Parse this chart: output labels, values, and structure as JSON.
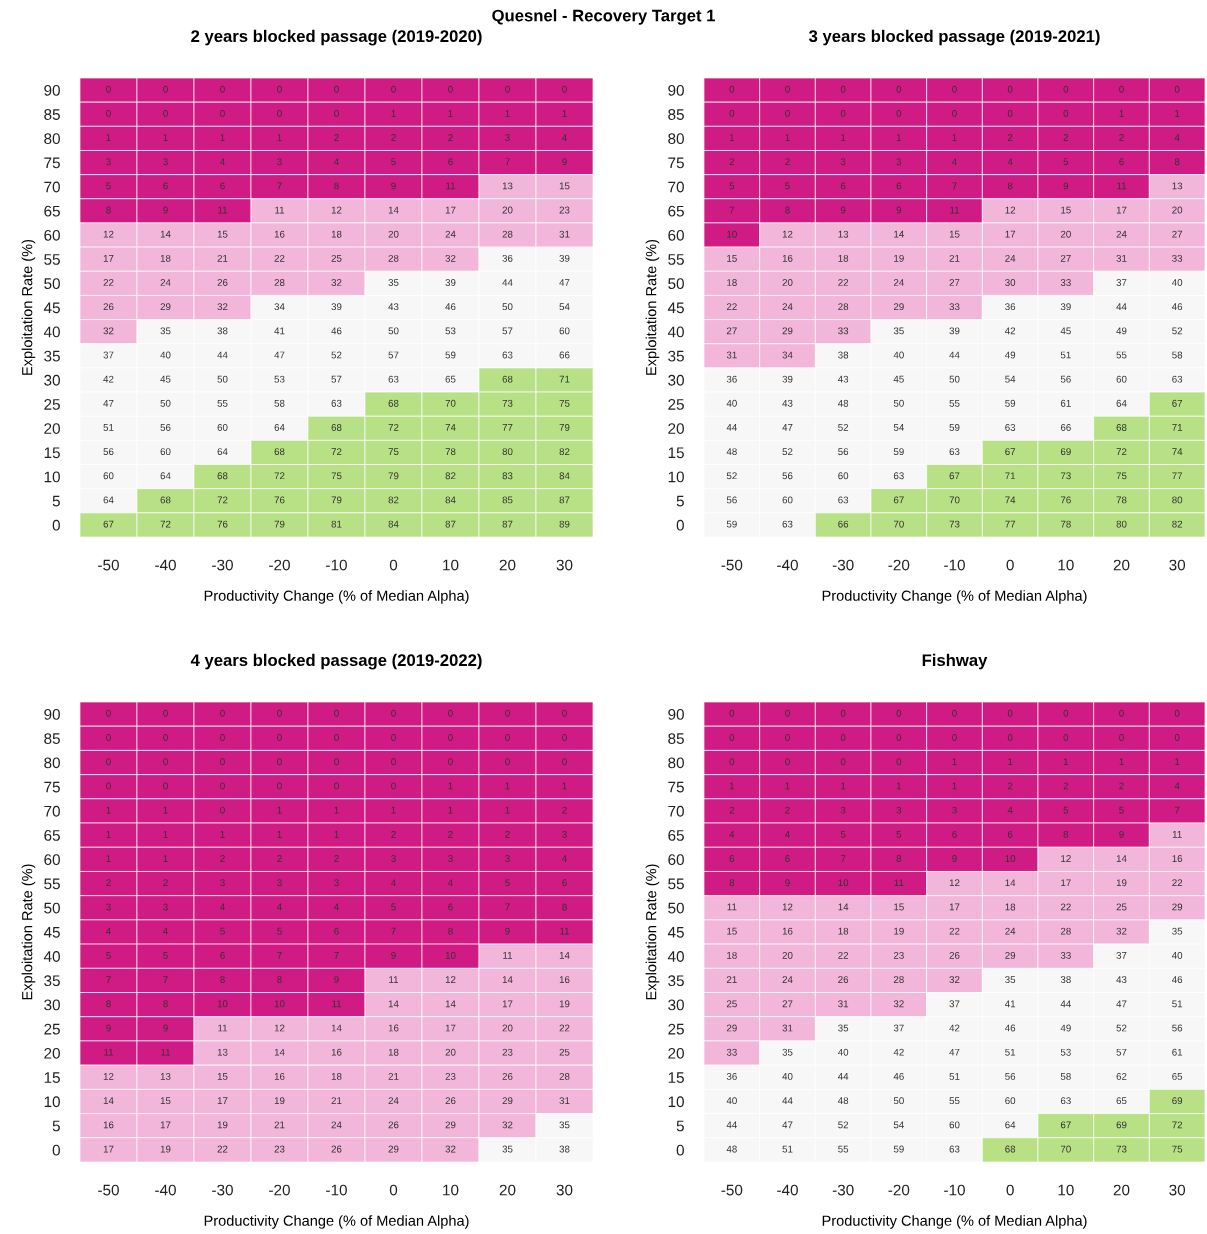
{
  "chart_data": [
    {
      "type": "other",
      "title": "Quesnel - Recovery Target 1"
    },
    {
      "type": "heatmap",
      "title": "2 years blocked passage (2019-2020)",
      "xlabel": "Productivity Change (% of Median Alpha)",
      "ylabel": "Exploitation Rate (%)",
      "data_labels": true,
      "categories": [
        "-50",
        "-40",
        "-30",
        "-20",
        "-10",
        "0",
        "10",
        "20",
        "30"
      ],
      "y_categories": [
        "90",
        "85",
        "80",
        "75",
        "70",
        "65",
        "60",
        "55",
        "50",
        "45",
        "40",
        "35",
        "30",
        "25",
        "20",
        "15",
        "10",
        "5",
        "0"
      ],
      "cells": [
        [
          0,
          0,
          0,
          0,
          0,
          0,
          0,
          0,
          0
        ],
        [
          0,
          0,
          0,
          0,
          0,
          1,
          1,
          1,
          1
        ],
        [
          1,
          1,
          1,
          1,
          2,
          2,
          2,
          3,
          4
        ],
        [
          3,
          3,
          4,
          3,
          4,
          5,
          6,
          7,
          9
        ],
        [
          5,
          6,
          6,
          7,
          8,
          9,
          11,
          13,
          15
        ],
        [
          8,
          9,
          11,
          11,
          12,
          14,
          17,
          20,
          23
        ],
        [
          12,
          14,
          15,
          16,
          18,
          20,
          24,
          28,
          31
        ],
        [
          17,
          18,
          21,
          22,
          25,
          28,
          32,
          36,
          39
        ],
        [
          22,
          24,
          26,
          28,
          32,
          35,
          39,
          44,
          47
        ],
        [
          26,
          29,
          32,
          34,
          39,
          43,
          46,
          50,
          54
        ],
        [
          32,
          35,
          38,
          41,
          46,
          50,
          53,
          57,
          60
        ],
        [
          37,
          40,
          44,
          47,
          52,
          57,
          59,
          63,
          66
        ],
        [
          42,
          45,
          50,
          53,
          57,
          63,
          65,
          68,
          71
        ],
        [
          47,
          50,
          55,
          58,
          63,
          68,
          70,
          73,
          75
        ],
        [
          51,
          56,
          60,
          64,
          68,
          72,
          74,
          77,
          79
        ],
        [
          56,
          60,
          64,
          68,
          72,
          75,
          78,
          80,
          82
        ],
        [
          60,
          64,
          68,
          72,
          75,
          79,
          82,
          83,
          84
        ],
        [
          64,
          68,
          72,
          76,
          79,
          82,
          84,
          85,
          87
        ],
        [
          67,
          72,
          76,
          79,
          81,
          84,
          87,
          87,
          89
        ]
      ],
      "colors": [
        [
          "#d01b84",
          "#d01b84",
          "#d01b84",
          "#d01b84",
          "#d01b84",
          "#d01b84",
          "#d01b84",
          "#d01b84",
          "#d01b84"
        ],
        [
          "#d01b84",
          "#d01b84",
          "#d01b84",
          "#d01b84",
          "#d01b84",
          "#d01b84",
          "#d01b84",
          "#d01b84",
          "#d01b84"
        ],
        [
          "#d01b84",
          "#d01b84",
          "#d01b84",
          "#d01b84",
          "#d01b84",
          "#d01b84",
          "#d01b84",
          "#d01b84",
          "#d01b84"
        ],
        [
          "#d01b84",
          "#d01b84",
          "#d01b84",
          "#d01b84",
          "#d01b84",
          "#d01b84",
          "#d01b84",
          "#d01b84",
          "#d01b84"
        ],
        [
          "#d01b84",
          "#d01b84",
          "#d01b84",
          "#d01b84",
          "#d01b84",
          "#d01b84",
          "#d01b84",
          "#f1b6da",
          "#f1b6da"
        ],
        [
          "#d01b84",
          "#d01b84",
          "#d01b84",
          "#f1b6da",
          "#f1b6da",
          "#f1b6da",
          "#f1b6da",
          "#f1b6da",
          "#f1b6da"
        ],
        [
          "#f1b6da",
          "#f1b6da",
          "#f1b6da",
          "#f1b6da",
          "#f1b6da",
          "#f1b6da",
          "#f1b6da",
          "#f1b6da",
          "#f1b6da"
        ],
        [
          "#f1b6da",
          "#f1b6da",
          "#f1b6da",
          "#f1b6da",
          "#f1b6da",
          "#f1b6da",
          "#f1b6da",
          "#f7f7f7",
          "#f7f7f7"
        ],
        [
          "#f1b6da",
          "#f1b6da",
          "#f1b6da",
          "#f1b6da",
          "#f1b6da",
          "#f7f7f7",
          "#f7f7f7",
          "#f7f7f7",
          "#f7f7f7"
        ],
        [
          "#f1b6da",
          "#f1b6da",
          "#f1b6da",
          "#f7f7f7",
          "#f7f7f7",
          "#f7f7f7",
          "#f7f7f7",
          "#f7f7f7",
          "#f7f7f7"
        ],
        [
          "#f1b6da",
          "#f7f7f7",
          "#f7f7f7",
          "#f7f7f7",
          "#f7f7f7",
          "#f7f7f7",
          "#f7f7f7",
          "#f7f7f7",
          "#f7f7f7"
        ],
        [
          "#f7f7f7",
          "#f7f7f7",
          "#f7f7f7",
          "#f7f7f7",
          "#f7f7f7",
          "#f7f7f7",
          "#f7f7f7",
          "#f7f7f7",
          "#f7f7f7"
        ],
        [
          "#f7f7f7",
          "#f7f7f7",
          "#f7f7f7",
          "#f7f7f7",
          "#f7f7f7",
          "#f7f7f7",
          "#f7f7f7",
          "#b8e186",
          "#b8e186"
        ],
        [
          "#f7f7f7",
          "#f7f7f7",
          "#f7f7f7",
          "#f7f7f7",
          "#f7f7f7",
          "#b8e186",
          "#b8e186",
          "#b8e186",
          "#b8e186"
        ],
        [
          "#f7f7f7",
          "#f7f7f7",
          "#f7f7f7",
          "#f7f7f7",
          "#b8e186",
          "#b8e186",
          "#b8e186",
          "#b8e186",
          "#b8e186"
        ],
        [
          "#f7f7f7",
          "#f7f7f7",
          "#f7f7f7",
          "#b8e186",
          "#b8e186",
          "#b8e186",
          "#b8e186",
          "#b8e186",
          "#b8e186"
        ],
        [
          "#f7f7f7",
          "#f7f7f7",
          "#b8e186",
          "#b8e186",
          "#b8e186",
          "#b8e186",
          "#b8e186",
          "#b8e186",
          "#b8e186"
        ],
        [
          "#f7f7f7",
          "#b8e186",
          "#b8e186",
          "#b8e186",
          "#b8e186",
          "#b8e186",
          "#b8e186",
          "#b8e186",
          "#b8e186"
        ],
        [
          "#b8e186",
          "#b8e186",
          "#b8e186",
          "#b8e186",
          "#b8e186",
          "#b8e186",
          "#b8e186",
          "#b8e186",
          "#b8e186"
        ]
      ]
    },
    {
      "type": "heatmap",
      "title": "3 years blocked passage (2019-2021)",
      "xlabel": "Productivity Change (% of Median Alpha)",
      "ylabel": "Exploitation Rate (%)",
      "data_labels": true,
      "categories": [
        "-50",
        "-40",
        "-30",
        "-20",
        "-10",
        "0",
        "10",
        "20",
        "30"
      ],
      "y_categories": [
        "90",
        "85",
        "80",
        "75",
        "70",
        "65",
        "60",
        "55",
        "50",
        "45",
        "40",
        "35",
        "30",
        "25",
        "20",
        "15",
        "10",
        "5",
        "0"
      ],
      "cells": [
        [
          0,
          0,
          0,
          0,
          0,
          0,
          0,
          0,
          0
        ],
        [
          0,
          0,
          0,
          0,
          0,
          0,
          0,
          1,
          1
        ],
        [
          1,
          1,
          1,
          1,
          1,
          2,
          2,
          2,
          4
        ],
        [
          2,
          2,
          3,
          3,
          4,
          4,
          5,
          6,
          8
        ],
        [
          5,
          5,
          6,
          6,
          7,
          8,
          9,
          11,
          13
        ],
        [
          7,
          8,
          9,
          9,
          11,
          12,
          15,
          17,
          20
        ],
        [
          10,
          12,
          13,
          14,
          15,
          17,
          20,
          24,
          27
        ],
        [
          15,
          16,
          18,
          19,
          21,
          24,
          27,
          31,
          33
        ],
        [
          18,
          20,
          22,
          24,
          27,
          30,
          33,
          37,
          40
        ],
        [
          22,
          24,
          28,
          29,
          33,
          36,
          39,
          44,
          46
        ],
        [
          27,
          29,
          33,
          35,
          39,
          42,
          45,
          49,
          52
        ],
        [
          31,
          34,
          38,
          40,
          44,
          49,
          51,
          55,
          58
        ],
        [
          36,
          39,
          43,
          45,
          50,
          54,
          56,
          60,
          63
        ],
        [
          40,
          43,
          48,
          50,
          55,
          59,
          61,
          64,
          67
        ],
        [
          44,
          47,
          52,
          54,
          59,
          63,
          66,
          68,
          71
        ],
        [
          48,
          52,
          56,
          59,
          63,
          67,
          69,
          72,
          74
        ],
        [
          52,
          56,
          60,
          63,
          67,
          71,
          73,
          75,
          77
        ],
        [
          56,
          60,
          63,
          67,
          70,
          74,
          76,
          78,
          80
        ],
        [
          59,
          63,
          66,
          70,
          73,
          77,
          78,
          80,
          82
        ]
      ],
      "colors": [
        [
          "#d01b84",
          "#d01b84",
          "#d01b84",
          "#d01b84",
          "#d01b84",
          "#d01b84",
          "#d01b84",
          "#d01b84",
          "#d01b84"
        ],
        [
          "#d01b84",
          "#d01b84",
          "#d01b84",
          "#d01b84",
          "#d01b84",
          "#d01b84",
          "#d01b84",
          "#d01b84",
          "#d01b84"
        ],
        [
          "#d01b84",
          "#d01b84",
          "#d01b84",
          "#d01b84",
          "#d01b84",
          "#d01b84",
          "#d01b84",
          "#d01b84",
          "#d01b84"
        ],
        [
          "#d01b84",
          "#d01b84",
          "#d01b84",
          "#d01b84",
          "#d01b84",
          "#d01b84",
          "#d01b84",
          "#d01b84",
          "#d01b84"
        ],
        [
          "#d01b84",
          "#d01b84",
          "#d01b84",
          "#d01b84",
          "#d01b84",
          "#d01b84",
          "#d01b84",
          "#d01b84",
          "#f1b6da"
        ],
        [
          "#d01b84",
          "#d01b84",
          "#d01b84",
          "#d01b84",
          "#d01b84",
          "#f1b6da",
          "#f1b6da",
          "#f1b6da",
          "#f1b6da"
        ],
        [
          "#d01b84",
          "#f1b6da",
          "#f1b6da",
          "#f1b6da",
          "#f1b6da",
          "#f1b6da",
          "#f1b6da",
          "#f1b6da",
          "#f1b6da"
        ],
        [
          "#f1b6da",
          "#f1b6da",
          "#f1b6da",
          "#f1b6da",
          "#f1b6da",
          "#f1b6da",
          "#f1b6da",
          "#f1b6da",
          "#f1b6da"
        ],
        [
          "#f1b6da",
          "#f1b6da",
          "#f1b6da",
          "#f1b6da",
          "#f1b6da",
          "#f1b6da",
          "#f1b6da",
          "#f7f7f7",
          "#f7f7f7"
        ],
        [
          "#f1b6da",
          "#f1b6da",
          "#f1b6da",
          "#f1b6da",
          "#f1b6da",
          "#f7f7f7",
          "#f7f7f7",
          "#f7f7f7",
          "#f7f7f7"
        ],
        [
          "#f1b6da",
          "#f1b6da",
          "#f1b6da",
          "#f7f7f7",
          "#f7f7f7",
          "#f7f7f7",
          "#f7f7f7",
          "#f7f7f7",
          "#f7f7f7"
        ],
        [
          "#f1b6da",
          "#f1b6da",
          "#f7f7f7",
          "#f7f7f7",
          "#f7f7f7",
          "#f7f7f7",
          "#f7f7f7",
          "#f7f7f7",
          "#f7f7f7"
        ],
        [
          "#f7f7f7",
          "#f7f7f7",
          "#f7f7f7",
          "#f7f7f7",
          "#f7f7f7",
          "#f7f7f7",
          "#f7f7f7",
          "#f7f7f7",
          "#f7f7f7"
        ],
        [
          "#f7f7f7",
          "#f7f7f7",
          "#f7f7f7",
          "#f7f7f7",
          "#f7f7f7",
          "#f7f7f7",
          "#f7f7f7",
          "#f7f7f7",
          "#b8e186"
        ],
        [
          "#f7f7f7",
          "#f7f7f7",
          "#f7f7f7",
          "#f7f7f7",
          "#f7f7f7",
          "#f7f7f7",
          "#f7f7f7",
          "#b8e186",
          "#b8e186"
        ],
        [
          "#f7f7f7",
          "#f7f7f7",
          "#f7f7f7",
          "#f7f7f7",
          "#f7f7f7",
          "#b8e186",
          "#b8e186",
          "#b8e186",
          "#b8e186"
        ],
        [
          "#f7f7f7",
          "#f7f7f7",
          "#f7f7f7",
          "#f7f7f7",
          "#b8e186",
          "#b8e186",
          "#b8e186",
          "#b8e186",
          "#b8e186"
        ],
        [
          "#f7f7f7",
          "#f7f7f7",
          "#f7f7f7",
          "#b8e186",
          "#b8e186",
          "#b8e186",
          "#b8e186",
          "#b8e186",
          "#b8e186"
        ],
        [
          "#f7f7f7",
          "#f7f7f7",
          "#b8e186",
          "#b8e186",
          "#b8e186",
          "#b8e186",
          "#b8e186",
          "#b8e186",
          "#b8e186"
        ]
      ]
    },
    {
      "type": "heatmap",
      "title": "4 years blocked passage (2019-2022)",
      "xlabel": "Productivity Change (% of Median Alpha)",
      "ylabel": "Exploitation Rate (%)",
      "data_labels": true,
      "categories": [
        "-50",
        "-40",
        "-30",
        "-20",
        "-10",
        "0",
        "10",
        "20",
        "30"
      ],
      "y_categories": [
        "90",
        "85",
        "80",
        "75",
        "70",
        "65",
        "60",
        "55",
        "50",
        "45",
        "40",
        "35",
        "30",
        "25",
        "20",
        "15",
        "10",
        "5",
        "0"
      ],
      "cells": [
        [
          0,
          0,
          0,
          0,
          0,
          0,
          0,
          0,
          0
        ],
        [
          0,
          0,
          0,
          0,
          0,
          0,
          0,
          0,
          0
        ],
        [
          0,
          0,
          0,
          0,
          0,
          0,
          0,
          0,
          0
        ],
        [
          0,
          0,
          0,
          0,
          0,
          0,
          1,
          1,
          1
        ],
        [
          1,
          1,
          0,
          1,
          1,
          1,
          1,
          1,
          2
        ],
        [
          1,
          1,
          1,
          1,
          1,
          2,
          2,
          2,
          3
        ],
        [
          1,
          1,
          2,
          2,
          2,
          3,
          3,
          3,
          4
        ],
        [
          2,
          2,
          3,
          3,
          3,
          4,
          4,
          5,
          6
        ],
        [
          3,
          3,
          4,
          4,
          4,
          5,
          6,
          7,
          8
        ],
        [
          4,
          4,
          5,
          5,
          6,
          7,
          8,
          9,
          11
        ],
        [
          5,
          5,
          6,
          7,
          7,
          9,
          10,
          11,
          14
        ],
        [
          7,
          7,
          8,
          8,
          9,
          11,
          12,
          14,
          16
        ],
        [
          8,
          8,
          10,
          10,
          11,
          14,
          14,
          17,
          19
        ],
        [
          9,
          9,
          11,
          12,
          14,
          16,
          17,
          20,
          22
        ],
        [
          11,
          11,
          13,
          14,
          16,
          18,
          20,
          23,
          25
        ],
        [
          12,
          13,
          15,
          16,
          18,
          21,
          23,
          26,
          28
        ],
        [
          14,
          15,
          17,
          19,
          21,
          24,
          26,
          29,
          31
        ],
        [
          16,
          17,
          19,
          21,
          24,
          26,
          29,
          32,
          35
        ],
        [
          17,
          19,
          22,
          23,
          26,
          29,
          32,
          35,
          38
        ]
      ],
      "colors": [
        [
          "#d01b84",
          "#d01b84",
          "#d01b84",
          "#d01b84",
          "#d01b84",
          "#d01b84",
          "#d01b84",
          "#d01b84",
          "#d01b84"
        ],
        [
          "#d01b84",
          "#d01b84",
          "#d01b84",
          "#d01b84",
          "#d01b84",
          "#d01b84",
          "#d01b84",
          "#d01b84",
          "#d01b84"
        ],
        [
          "#d01b84",
          "#d01b84",
          "#d01b84",
          "#d01b84",
          "#d01b84",
          "#d01b84",
          "#d01b84",
          "#d01b84",
          "#d01b84"
        ],
        [
          "#d01b84",
          "#d01b84",
          "#d01b84",
          "#d01b84",
          "#d01b84",
          "#d01b84",
          "#d01b84",
          "#d01b84",
          "#d01b84"
        ],
        [
          "#d01b84",
          "#d01b84",
          "#d01b84",
          "#d01b84",
          "#d01b84",
          "#d01b84",
          "#d01b84",
          "#d01b84",
          "#d01b84"
        ],
        [
          "#d01b84",
          "#d01b84",
          "#d01b84",
          "#d01b84",
          "#d01b84",
          "#d01b84",
          "#d01b84",
          "#d01b84",
          "#d01b84"
        ],
        [
          "#d01b84",
          "#d01b84",
          "#d01b84",
          "#d01b84",
          "#d01b84",
          "#d01b84",
          "#d01b84",
          "#d01b84",
          "#d01b84"
        ],
        [
          "#d01b84",
          "#d01b84",
          "#d01b84",
          "#d01b84",
          "#d01b84",
          "#d01b84",
          "#d01b84",
          "#d01b84",
          "#d01b84"
        ],
        [
          "#d01b84",
          "#d01b84",
          "#d01b84",
          "#d01b84",
          "#d01b84",
          "#d01b84",
          "#d01b84",
          "#d01b84",
          "#d01b84"
        ],
        [
          "#d01b84",
          "#d01b84",
          "#d01b84",
          "#d01b84",
          "#d01b84",
          "#d01b84",
          "#d01b84",
          "#d01b84",
          "#d01b84"
        ],
        [
          "#d01b84",
          "#d01b84",
          "#d01b84",
          "#d01b84",
          "#d01b84",
          "#d01b84",
          "#d01b84",
          "#f1b6da",
          "#f1b6da"
        ],
        [
          "#d01b84",
          "#d01b84",
          "#d01b84",
          "#d01b84",
          "#d01b84",
          "#f1b6da",
          "#f1b6da",
          "#f1b6da",
          "#f1b6da"
        ],
        [
          "#d01b84",
          "#d01b84",
          "#d01b84",
          "#d01b84",
          "#d01b84",
          "#f1b6da",
          "#f1b6da",
          "#f1b6da",
          "#f1b6da"
        ],
        [
          "#d01b84",
          "#d01b84",
          "#f1b6da",
          "#f1b6da",
          "#f1b6da",
          "#f1b6da",
          "#f1b6da",
          "#f1b6da",
          "#f1b6da"
        ],
        [
          "#d01b84",
          "#d01b84",
          "#f1b6da",
          "#f1b6da",
          "#f1b6da",
          "#f1b6da",
          "#f1b6da",
          "#f1b6da",
          "#f1b6da"
        ],
        [
          "#f1b6da",
          "#f1b6da",
          "#f1b6da",
          "#f1b6da",
          "#f1b6da",
          "#f1b6da",
          "#f1b6da",
          "#f1b6da",
          "#f1b6da"
        ],
        [
          "#f1b6da",
          "#f1b6da",
          "#f1b6da",
          "#f1b6da",
          "#f1b6da",
          "#f1b6da",
          "#f1b6da",
          "#f1b6da",
          "#f1b6da"
        ],
        [
          "#f1b6da",
          "#f1b6da",
          "#f1b6da",
          "#f1b6da",
          "#f1b6da",
          "#f1b6da",
          "#f1b6da",
          "#f1b6da",
          "#f7f7f7"
        ],
        [
          "#f1b6da",
          "#f1b6da",
          "#f1b6da",
          "#f1b6da",
          "#f1b6da",
          "#f1b6da",
          "#f1b6da",
          "#f7f7f7",
          "#f7f7f7"
        ]
      ]
    },
    {
      "type": "heatmap",
      "title": "Fishway",
      "xlabel": "Productivity Change (% of Median Alpha)",
      "ylabel": "Exploitation Rate (%)",
      "data_labels": true,
      "categories": [
        "-50",
        "-40",
        "-30",
        "-20",
        "-10",
        "0",
        "10",
        "20",
        "30"
      ],
      "y_categories": [
        "90",
        "85",
        "80",
        "75",
        "70",
        "65",
        "60",
        "55",
        "50",
        "45",
        "40",
        "35",
        "30",
        "25",
        "20",
        "15",
        "10",
        "5",
        "0"
      ],
      "cells": [
        [
          0,
          0,
          0,
          0,
          0,
          0,
          0,
          0,
          0
        ],
        [
          0,
          0,
          0,
          0,
          0,
          0,
          0,
          0,
          0
        ],
        [
          0,
          0,
          0,
          0,
          1,
          1,
          1,
          1,
          1
        ],
        [
          1,
          1,
          1,
          1,
          1,
          2,
          2,
          2,
          4
        ],
        [
          2,
          2,
          3,
          3,
          3,
          4,
          5,
          5,
          7
        ],
        [
          4,
          4,
          5,
          5,
          6,
          6,
          8,
          9,
          11
        ],
        [
          6,
          6,
          7,
          8,
          9,
          10,
          12,
          14,
          16
        ],
        [
          8,
          9,
          10,
          11,
          12,
          14,
          17,
          19,
          22
        ],
        [
          11,
          12,
          14,
          15,
          17,
          18,
          22,
          25,
          29
        ],
        [
          15,
          16,
          18,
          19,
          22,
          24,
          28,
          32,
          35
        ],
        [
          18,
          20,
          22,
          23,
          26,
          29,
          33,
          37,
          40
        ],
        [
          21,
          24,
          26,
          28,
          32,
          35,
          38,
          43,
          46
        ],
        [
          25,
          27,
          31,
          32,
          37,
          41,
          44,
          47,
          51
        ],
        [
          29,
          31,
          35,
          37,
          42,
          46,
          49,
          52,
          56
        ],
        [
          33,
          35,
          40,
          42,
          47,
          51,
          53,
          57,
          61
        ],
        [
          36,
          40,
          44,
          46,
          51,
          56,
          58,
          62,
          65
        ],
        [
          40,
          44,
          48,
          50,
          55,
          60,
          63,
          65,
          69
        ],
        [
          44,
          47,
          52,
          54,
          60,
          64,
          67,
          69,
          72
        ],
        [
          48,
          51,
          55,
          59,
          63,
          68,
          70,
          73,
          75
        ]
      ],
      "colors": [
        [
          "#d01b84",
          "#d01b84",
          "#d01b84",
          "#d01b84",
          "#d01b84",
          "#d01b84",
          "#d01b84",
          "#d01b84",
          "#d01b84"
        ],
        [
          "#d01b84",
          "#d01b84",
          "#d01b84",
          "#d01b84",
          "#d01b84",
          "#d01b84",
          "#d01b84",
          "#d01b84",
          "#d01b84"
        ],
        [
          "#d01b84",
          "#d01b84",
          "#d01b84",
          "#d01b84",
          "#d01b84",
          "#d01b84",
          "#d01b84",
          "#d01b84",
          "#d01b84"
        ],
        [
          "#d01b84",
          "#d01b84",
          "#d01b84",
          "#d01b84",
          "#d01b84",
          "#d01b84",
          "#d01b84",
          "#d01b84",
          "#d01b84"
        ],
        [
          "#d01b84",
          "#d01b84",
          "#d01b84",
          "#d01b84",
          "#d01b84",
          "#d01b84",
          "#d01b84",
          "#d01b84",
          "#d01b84"
        ],
        [
          "#d01b84",
          "#d01b84",
          "#d01b84",
          "#d01b84",
          "#d01b84",
          "#d01b84",
          "#d01b84",
          "#d01b84",
          "#f1b6da"
        ],
        [
          "#d01b84",
          "#d01b84",
          "#d01b84",
          "#d01b84",
          "#d01b84",
          "#d01b84",
          "#f1b6da",
          "#f1b6da",
          "#f1b6da"
        ],
        [
          "#d01b84",
          "#d01b84",
          "#d01b84",
          "#d01b84",
          "#f1b6da",
          "#f1b6da",
          "#f1b6da",
          "#f1b6da",
          "#f1b6da"
        ],
        [
          "#f1b6da",
          "#f1b6da",
          "#f1b6da",
          "#f1b6da",
          "#f1b6da",
          "#f1b6da",
          "#f1b6da",
          "#f1b6da",
          "#f1b6da"
        ],
        [
          "#f1b6da",
          "#f1b6da",
          "#f1b6da",
          "#f1b6da",
          "#f1b6da",
          "#f1b6da",
          "#f1b6da",
          "#f1b6da",
          "#f7f7f7"
        ],
        [
          "#f1b6da",
          "#f1b6da",
          "#f1b6da",
          "#f1b6da",
          "#f1b6da",
          "#f1b6da",
          "#f1b6da",
          "#f7f7f7",
          "#f7f7f7"
        ],
        [
          "#f1b6da",
          "#f1b6da",
          "#f1b6da",
          "#f1b6da",
          "#f1b6da",
          "#f7f7f7",
          "#f7f7f7",
          "#f7f7f7",
          "#f7f7f7"
        ],
        [
          "#f1b6da",
          "#f1b6da",
          "#f1b6da",
          "#f1b6da",
          "#f7f7f7",
          "#f7f7f7",
          "#f7f7f7",
          "#f7f7f7",
          "#f7f7f7"
        ],
        [
          "#f1b6da",
          "#f1b6da",
          "#f7f7f7",
          "#f7f7f7",
          "#f7f7f7",
          "#f7f7f7",
          "#f7f7f7",
          "#f7f7f7",
          "#f7f7f7"
        ],
        [
          "#f1b6da",
          "#f7f7f7",
          "#f7f7f7",
          "#f7f7f7",
          "#f7f7f7",
          "#f7f7f7",
          "#f7f7f7",
          "#f7f7f7",
          "#f7f7f7"
        ],
        [
          "#f7f7f7",
          "#f7f7f7",
          "#f7f7f7",
          "#f7f7f7",
          "#f7f7f7",
          "#f7f7f7",
          "#f7f7f7",
          "#f7f7f7",
          "#f7f7f7"
        ],
        [
          "#f7f7f7",
          "#f7f7f7",
          "#f7f7f7",
          "#f7f7f7",
          "#f7f7f7",
          "#f7f7f7",
          "#f7f7f7",
          "#f7f7f7",
          "#b8e186"
        ],
        [
          "#f7f7f7",
          "#f7f7f7",
          "#f7f7f7",
          "#f7f7f7",
          "#f7f7f7",
          "#f7f7f7",
          "#b8e186",
          "#b8e186",
          "#b8e186"
        ],
        [
          "#f7f7f7",
          "#f7f7f7",
          "#f7f7f7",
          "#f7f7f7",
          "#f7f7f7",
          "#b8e186",
          "#b8e186",
          "#b8e186",
          "#b8e186"
        ]
      ]
    }
  ]
}
